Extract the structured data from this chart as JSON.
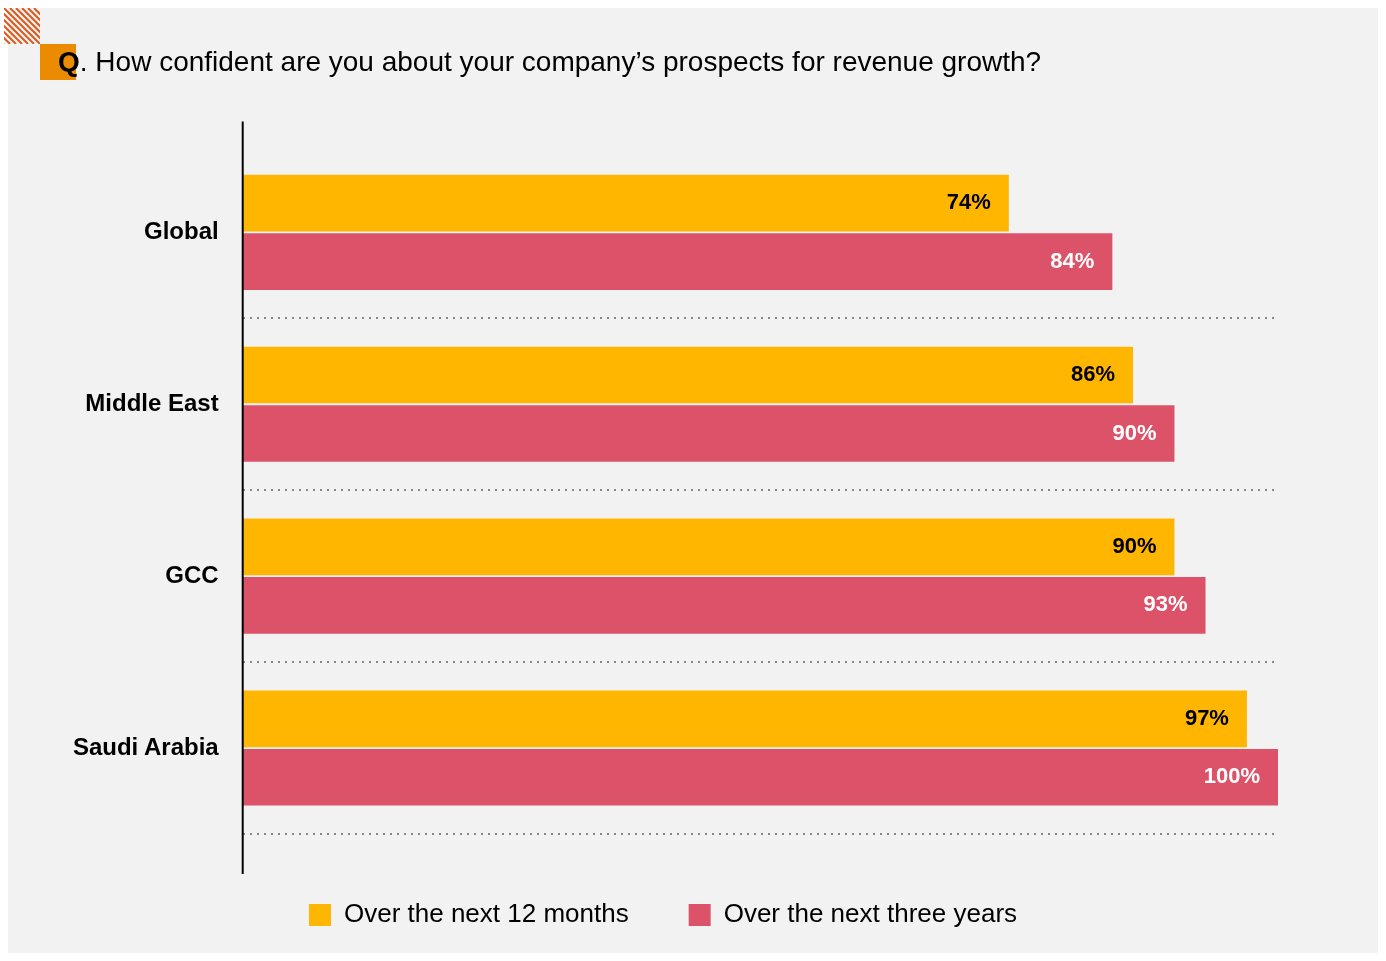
{
  "chart_data": {
    "type": "bar",
    "orientation": "horizontal",
    "title": "Q. How confident are you about your company’s prospects for revenue growth?",
    "categories": [
      "Global",
      "Middle East",
      "GCC",
      "Saudi Arabia"
    ],
    "series": [
      {
        "name": "Over the next 12 months",
        "color": "#ffb600",
        "values": [
          74,
          86,
          90,
          97
        ],
        "value_labels": [
          "74%",
          "86%",
          "90%",
          "97%"
        ]
      },
      {
        "name": "Over the next three years",
        "color": "#dc5369",
        "values": [
          84,
          90,
          93,
          100
        ],
        "value_labels": [
          "84%",
          "90%",
          "93%",
          "100%"
        ]
      }
    ],
    "grid": "y",
    "legend": "bottom",
    "tick_labels": "y"
  }
}
